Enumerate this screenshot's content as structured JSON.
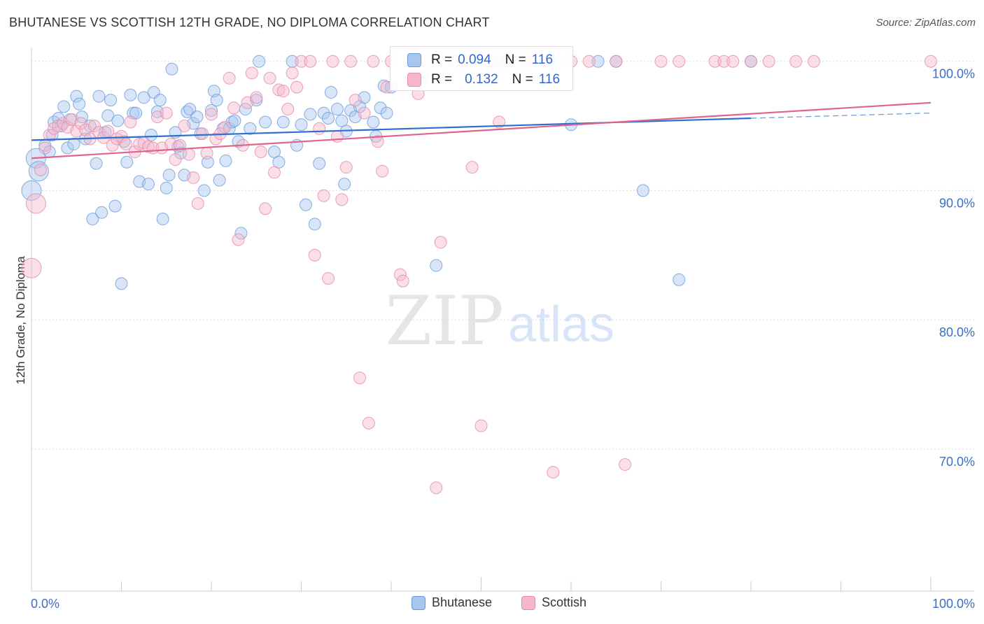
{
  "title": "BHUTANESE VS SCOTTISH 12TH GRADE, NO DIPLOMA CORRELATION CHART",
  "source": "Source: ZipAtlas.com",
  "watermark": {
    "zip": "ZIP",
    "atlas": "atlas"
  },
  "colors": {
    "bhutanese_fill": "#a9c6ef",
    "bhutanese_stroke": "#6a9bd8",
    "bhutanese_line": "#2f6fd0",
    "scottish_fill": "#f5b8cb",
    "scottish_stroke": "#e58aa8",
    "scottish_line": "#e0648e",
    "tick_label": "#3a6fc4",
    "grid": "#dcdcdc"
  },
  "stats": {
    "row1": {
      "r_label": "R =",
      "r_value": "0.094",
      "n_label": "N =",
      "n_value": "116"
    },
    "row2": {
      "r_label": "R =",
      "r_value": "0.132",
      "n_label": "N =",
      "n_value": "116"
    }
  },
  "chart_data": {
    "type": "scatter",
    "title": "BHUTANESE VS SCOTTISH 12TH GRADE, NO DIPLOMA CORRELATION CHART",
    "xlabel": "",
    "ylabel": "12th Grade, No Diploma",
    "xlim": [
      0,
      100
    ],
    "ylim": [
      59,
      101.5
    ],
    "x_tick_labels": [
      "0.0%",
      "100.0%"
    ],
    "y_ticks": [
      {
        "value": 70,
        "label": "70.0%"
      },
      {
        "value": 80,
        "label": "80.0%"
      },
      {
        "value": 90,
        "label": "90.0%"
      },
      {
        "value": 100,
        "label": "100.0%"
      }
    ],
    "grid": true,
    "legend_placement": "bottom-center",
    "series": [
      {
        "name": "Bhutanese",
        "trend": {
          "x": [
            0,
            80
          ],
          "y": [
            93.9,
            95.6
          ],
          "dashed_to": [
            100,
            96.0
          ]
        },
        "points": [
          [
            0,
            90
          ],
          [
            0.5,
            92.5
          ],
          [
            0.8,
            91.5
          ],
          [
            1.5,
            93.5
          ],
          [
            2,
            93
          ],
          [
            2.3,
            94.3
          ],
          [
            2.5,
            95.3
          ],
          [
            3,
            95.6
          ],
          [
            3.3,
            95
          ],
          [
            3.6,
            96.5
          ],
          [
            4,
            93.3
          ],
          [
            4.3,
            95.5
          ],
          [
            4.7,
            93.6
          ],
          [
            5,
            97.3
          ],
          [
            5.3,
            96.7
          ],
          [
            5.6,
            95.7
          ],
          [
            6,
            94
          ],
          [
            6.5,
            95
          ],
          [
            6.8,
            87.8
          ],
          [
            7.2,
            92.1
          ],
          [
            7.5,
            97.3
          ],
          [
            7.8,
            88.3
          ],
          [
            8.2,
            94.5
          ],
          [
            8.5,
            95.8
          ],
          [
            8.8,
            97
          ],
          [
            9.3,
            88.8
          ],
          [
            9.6,
            95.4
          ],
          [
            10,
            82.8
          ],
          [
            10.3,
            93.8
          ],
          [
            10.6,
            92.2
          ],
          [
            11,
            97.4
          ],
          [
            11.3,
            96
          ],
          [
            11.6,
            96
          ],
          [
            12,
            90.7
          ],
          [
            12.5,
            97.2
          ],
          [
            13,
            90.5
          ],
          [
            13.3,
            94.3
          ],
          [
            13.6,
            97.6
          ],
          [
            14,
            96.1
          ],
          [
            14.3,
            97
          ],
          [
            14.6,
            87.8
          ],
          [
            15,
            90.2
          ],
          [
            15.3,
            91.2
          ],
          [
            15.6,
            99.4
          ],
          [
            16,
            94.5
          ],
          [
            16.3,
            93.4
          ],
          [
            16.6,
            92.9
          ],
          [
            17,
            91.2
          ],
          [
            17.3,
            96.1
          ],
          [
            17.6,
            96.3
          ],
          [
            18,
            95.2
          ],
          [
            18.4,
            95.7
          ],
          [
            18.8,
            94.4
          ],
          [
            19.2,
            90
          ],
          [
            19.6,
            92.2
          ],
          [
            20,
            96.2
          ],
          [
            20.3,
            97.7
          ],
          [
            20.6,
            97
          ],
          [
            20.9,
            90.8
          ],
          [
            21.3,
            94.8
          ],
          [
            21.6,
            92.3
          ],
          [
            22,
            94.8
          ],
          [
            22.3,
            95.3
          ],
          [
            22.6,
            95.4
          ],
          [
            23,
            93.8
          ],
          [
            23.3,
            86.7
          ],
          [
            23.8,
            96.3
          ],
          [
            24.3,
            94.8
          ],
          [
            25,
            97
          ],
          [
            25.3,
            100
          ],
          [
            26,
            95.3
          ],
          [
            27,
            93
          ],
          [
            27.5,
            92.2
          ],
          [
            28,
            95.3
          ],
          [
            29,
            100
          ],
          [
            29.5,
            93.5
          ],
          [
            30,
            95.1
          ],
          [
            30.5,
            88.9
          ],
          [
            31,
            95.9
          ],
          [
            31.5,
            87.4
          ],
          [
            32,
            92.1
          ],
          [
            32.5,
            96
          ],
          [
            33,
            95.6
          ],
          [
            33.3,
            97.6
          ],
          [
            34,
            96.3
          ],
          [
            34.5,
            95.4
          ],
          [
            34.8,
            90.5
          ],
          [
            35,
            94.6
          ],
          [
            35.5,
            96.2
          ],
          [
            36,
            95.7
          ],
          [
            36.5,
            96.5
          ],
          [
            37,
            97.2
          ],
          [
            38,
            95.3
          ],
          [
            38.3,
            94.2
          ],
          [
            38.8,
            96.4
          ],
          [
            39.5,
            96
          ],
          [
            39.2,
            98.1
          ],
          [
            40,
            98
          ],
          [
            42,
            100
          ],
          [
            43.5,
            98.8
          ],
          [
            45,
            84.2
          ],
          [
            48,
            100
          ],
          [
            52,
            100
          ],
          [
            53,
            100
          ],
          [
            55,
            100
          ],
          [
            58,
            100
          ],
          [
            60,
            95.1
          ],
          [
            63,
            100
          ],
          [
            65,
            100
          ],
          [
            68,
            90
          ],
          [
            72,
            83.1
          ],
          [
            80,
            100
          ]
        ]
      },
      {
        "name": "Scottish",
        "trend": {
          "x": [
            0,
            100
          ],
          "y": [
            92.5,
            96.8
          ]
        },
        "points": [
          [
            0,
            84
          ],
          [
            0.5,
            89
          ],
          [
            1,
            91.6
          ],
          [
            1.5,
            93.3
          ],
          [
            2,
            94.3
          ],
          [
            2.5,
            94.8
          ],
          [
            3,
            95
          ],
          [
            3.5,
            95.2
          ],
          [
            4,
            94.9
          ],
          [
            4.5,
            95.5
          ],
          [
            5,
            94.6
          ],
          [
            5.5,
            95.2
          ],
          [
            6,
            94.7
          ],
          [
            6.5,
            94
          ],
          [
            7,
            95
          ],
          [
            7.5,
            94.5
          ],
          [
            8,
            94.1
          ],
          [
            8.5,
            94.6
          ],
          [
            9,
            93.5
          ],
          [
            9.5,
            94
          ],
          [
            10,
            94.2
          ],
          [
            10.5,
            93.6
          ],
          [
            11,
            95.3
          ],
          [
            11.5,
            93
          ],
          [
            12,
            93.6
          ],
          [
            12.5,
            93.7
          ],
          [
            13,
            93.4
          ],
          [
            13.5,
            93.3
          ],
          [
            14,
            95.7
          ],
          [
            14.5,
            93.3
          ],
          [
            15,
            96
          ],
          [
            15.5,
            93.6
          ],
          [
            16,
            92.4
          ],
          [
            16.5,
            93.5
          ],
          [
            17,
            95
          ],
          [
            17.5,
            92.8
          ],
          [
            18,
            91
          ],
          [
            18.5,
            89
          ],
          [
            19,
            94.4
          ],
          [
            19.5,
            92.9
          ],
          [
            20,
            95.9
          ],
          [
            20.5,
            94
          ],
          [
            21,
            94.4
          ],
          [
            21.5,
            94.9
          ],
          [
            22,
            98.7
          ],
          [
            22.5,
            96.4
          ],
          [
            23,
            86.2
          ],
          [
            23.5,
            93.5
          ],
          [
            24,
            96.8
          ],
          [
            24.5,
            99.1
          ],
          [
            25,
            97.2
          ],
          [
            25.5,
            93
          ],
          [
            26,
            88.6
          ],
          [
            26.5,
            98.7
          ],
          [
            27,
            91.4
          ],
          [
            27.5,
            97.8
          ],
          [
            28,
            97.7
          ],
          [
            28.5,
            96.3
          ],
          [
            29,
            99.1
          ],
          [
            29.5,
            98
          ],
          [
            30,
            100
          ],
          [
            31,
            100
          ],
          [
            31.5,
            85
          ],
          [
            32,
            94.8
          ],
          [
            32.5,
            89.6
          ],
          [
            33,
            83.2
          ],
          [
            33.5,
            100
          ],
          [
            34,
            94.2
          ],
          [
            34.5,
            89.3
          ],
          [
            35,
            91.8
          ],
          [
            35.5,
            100
          ],
          [
            36,
            97
          ],
          [
            36.5,
            75.5
          ],
          [
            37,
            96
          ],
          [
            37.5,
            72
          ],
          [
            38,
            100
          ],
          [
            38.5,
            93.8
          ],
          [
            39,
            91.5
          ],
          [
            39.5,
            98
          ],
          [
            40,
            100
          ],
          [
            41,
            83.5
          ],
          [
            41.3,
            83
          ],
          [
            42,
            100
          ],
          [
            43,
            97.5
          ],
          [
            44,
            100
          ],
          [
            45,
            67
          ],
          [
            45.5,
            86
          ],
          [
            46,
            100
          ],
          [
            47,
            100
          ],
          [
            48,
            100
          ],
          [
            49,
            91.8
          ],
          [
            50,
            71.8
          ],
          [
            51,
            100
          ],
          [
            52,
            95.3
          ],
          [
            53,
            100
          ],
          [
            54,
            100
          ],
          [
            55,
            100
          ],
          [
            58,
            68.2
          ],
          [
            60,
            100
          ],
          [
            62,
            100
          ],
          [
            65,
            100
          ],
          [
            66,
            68.8
          ],
          [
            70,
            100
          ],
          [
            72,
            100
          ],
          [
            76,
            100
          ],
          [
            77,
            100
          ],
          [
            78,
            100
          ],
          [
            80,
            100
          ],
          [
            82,
            100
          ],
          [
            85,
            100
          ],
          [
            87,
            100
          ],
          [
            100,
            100
          ]
        ]
      }
    ]
  }
}
